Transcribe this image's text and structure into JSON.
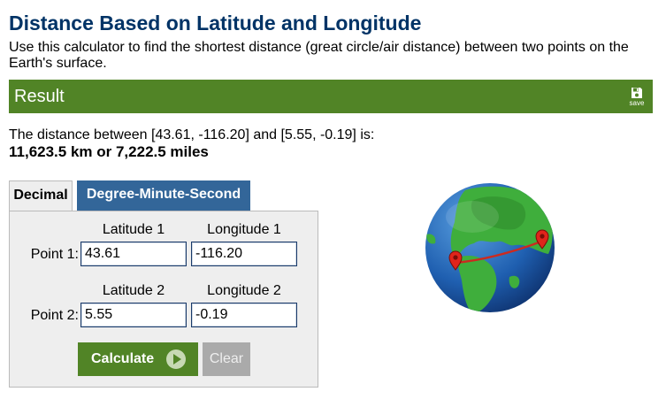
{
  "page": {
    "title": "Distance Based on Latitude and Longitude",
    "description": "Use this calculator to find the shortest distance (great circle/air distance) between two points on the Earth's surface."
  },
  "result": {
    "heading": "Result",
    "save_label": "save",
    "distance_text": "The distance between [43.61, -116.20] and [5.55, -0.19] is:",
    "distance_value": "11,623.5 km or 7,222.5 miles"
  },
  "tabs": [
    {
      "label": "Decimal",
      "active": true
    },
    {
      "label": "Degree-Minute-Second",
      "active": false
    }
  ],
  "form": {
    "point1": {
      "label": "Point 1:",
      "lat_header": "Latitude 1",
      "lon_header": "Longitude 1",
      "lat_value": "43.61",
      "lon_value": "-116.20"
    },
    "point2": {
      "label": "Point 2:",
      "lat_header": "Latitude 2",
      "lon_header": "Longitude 2",
      "lat_value": "5.55",
      "lon_value": "-0.19"
    },
    "calculate_label": "Calculate",
    "clear_label": "Clear"
  },
  "colors": {
    "title": "#003366",
    "accent_green": "#518426",
    "tab_blue": "#336699",
    "clear_gray": "#aaaaaa"
  },
  "icons": [
    "save-icon",
    "play-icon",
    "globe-illustration",
    "map-pin-icon"
  ]
}
